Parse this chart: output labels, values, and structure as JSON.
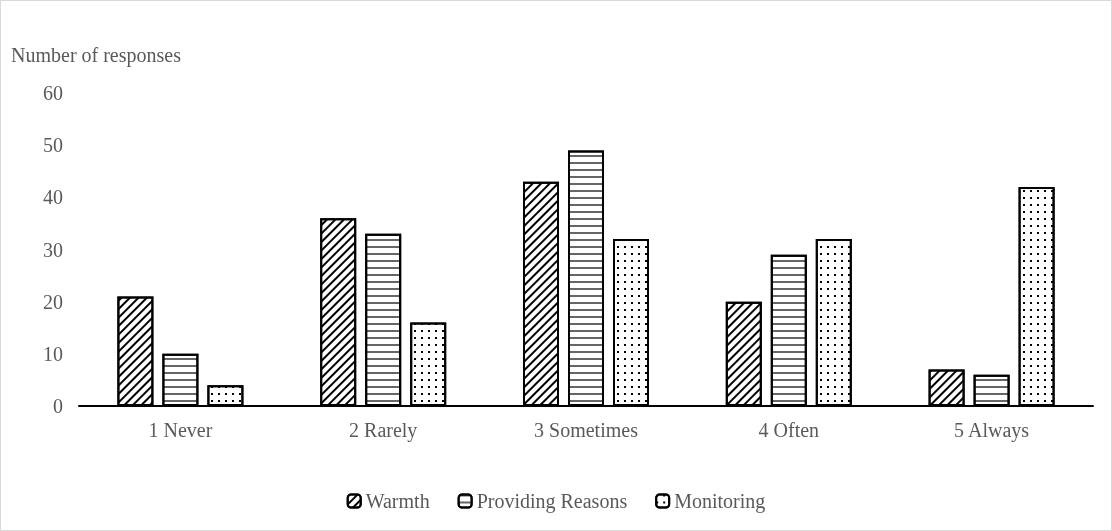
{
  "chart_data": {
    "type": "bar",
    "ylabel": "Number of responses",
    "categories": [
      "1 Never",
      "2 Rarely",
      "3 Sometimes",
      "4 Often",
      "5 Always"
    ],
    "series": [
      {
        "name": "Warmth",
        "color": "#000000",
        "values": [
          21,
          36,
          43,
          20,
          7
        ]
      },
      {
        "name": "Providing Reasons",
        "color": "#000000",
        "values": [
          10,
          33,
          49,
          29,
          6
        ]
      },
      {
        "name": "Monitoring",
        "color": "#000000",
        "values": [
          4,
          16,
          32,
          32,
          42
        ]
      }
    ],
    "ylim": [
      0,
      60
    ],
    "yticks": [
      0,
      10,
      20,
      30,
      40,
      50,
      60
    ],
    "grid": false,
    "legend": "bottom"
  }
}
